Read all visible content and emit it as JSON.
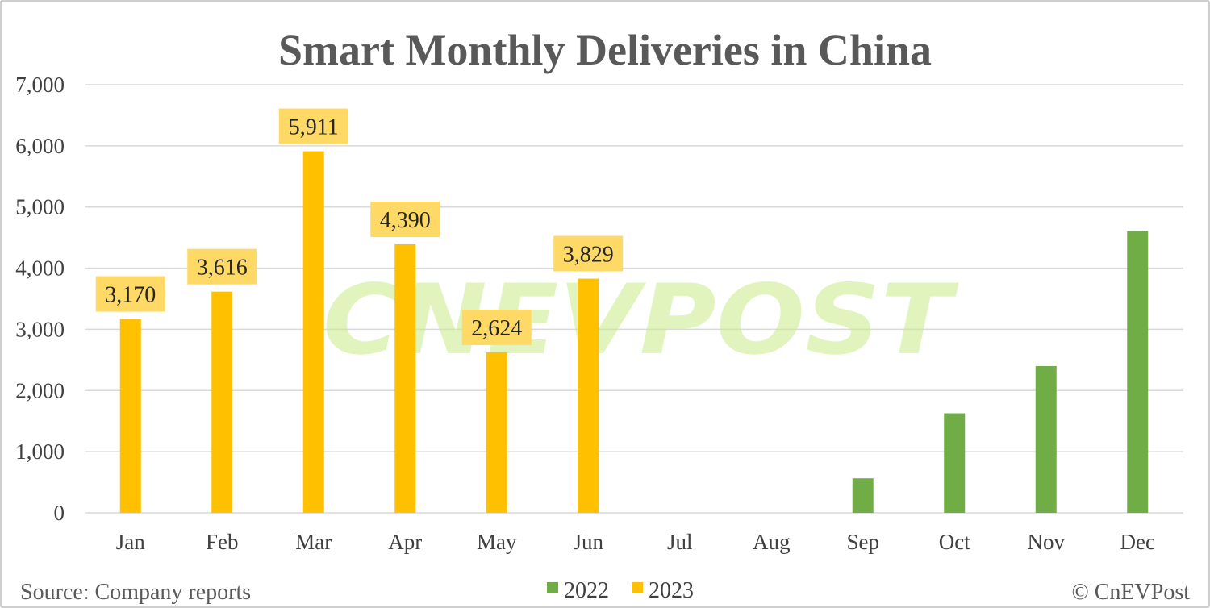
{
  "chart_data": {
    "type": "bar",
    "title": "Smart Monthly Deliveries in China",
    "categories": [
      "Jan",
      "Feb",
      "Mar",
      "Apr",
      "May",
      "Jun",
      "Jul",
      "Aug",
      "Sep",
      "Oct",
      "Nov",
      "Dec"
    ],
    "series": [
      {
        "name": "2022",
        "color": "#70ad47",
        "values": [
          null,
          null,
          null,
          null,
          null,
          null,
          null,
          null,
          564,
          1628,
          2400,
          4607
        ],
        "data_labels": false
      },
      {
        "name": "2023",
        "color": "#ffc000",
        "values": [
          3170,
          3616,
          5911,
          4390,
          2624,
          3829,
          null,
          null,
          null,
          null,
          null,
          null
        ],
        "data_labels": true
      }
    ],
    "ylim": [
      0,
      7000
    ],
    "yticks": [
      0,
      1000,
      2000,
      3000,
      4000,
      5000,
      6000,
      7000
    ],
    "grid": true,
    "legend_position": "bottom-center"
  },
  "footer": {
    "source": "Source: Company reports",
    "credit": "© CnEVPost"
  },
  "watermark": "CNEVPOST"
}
